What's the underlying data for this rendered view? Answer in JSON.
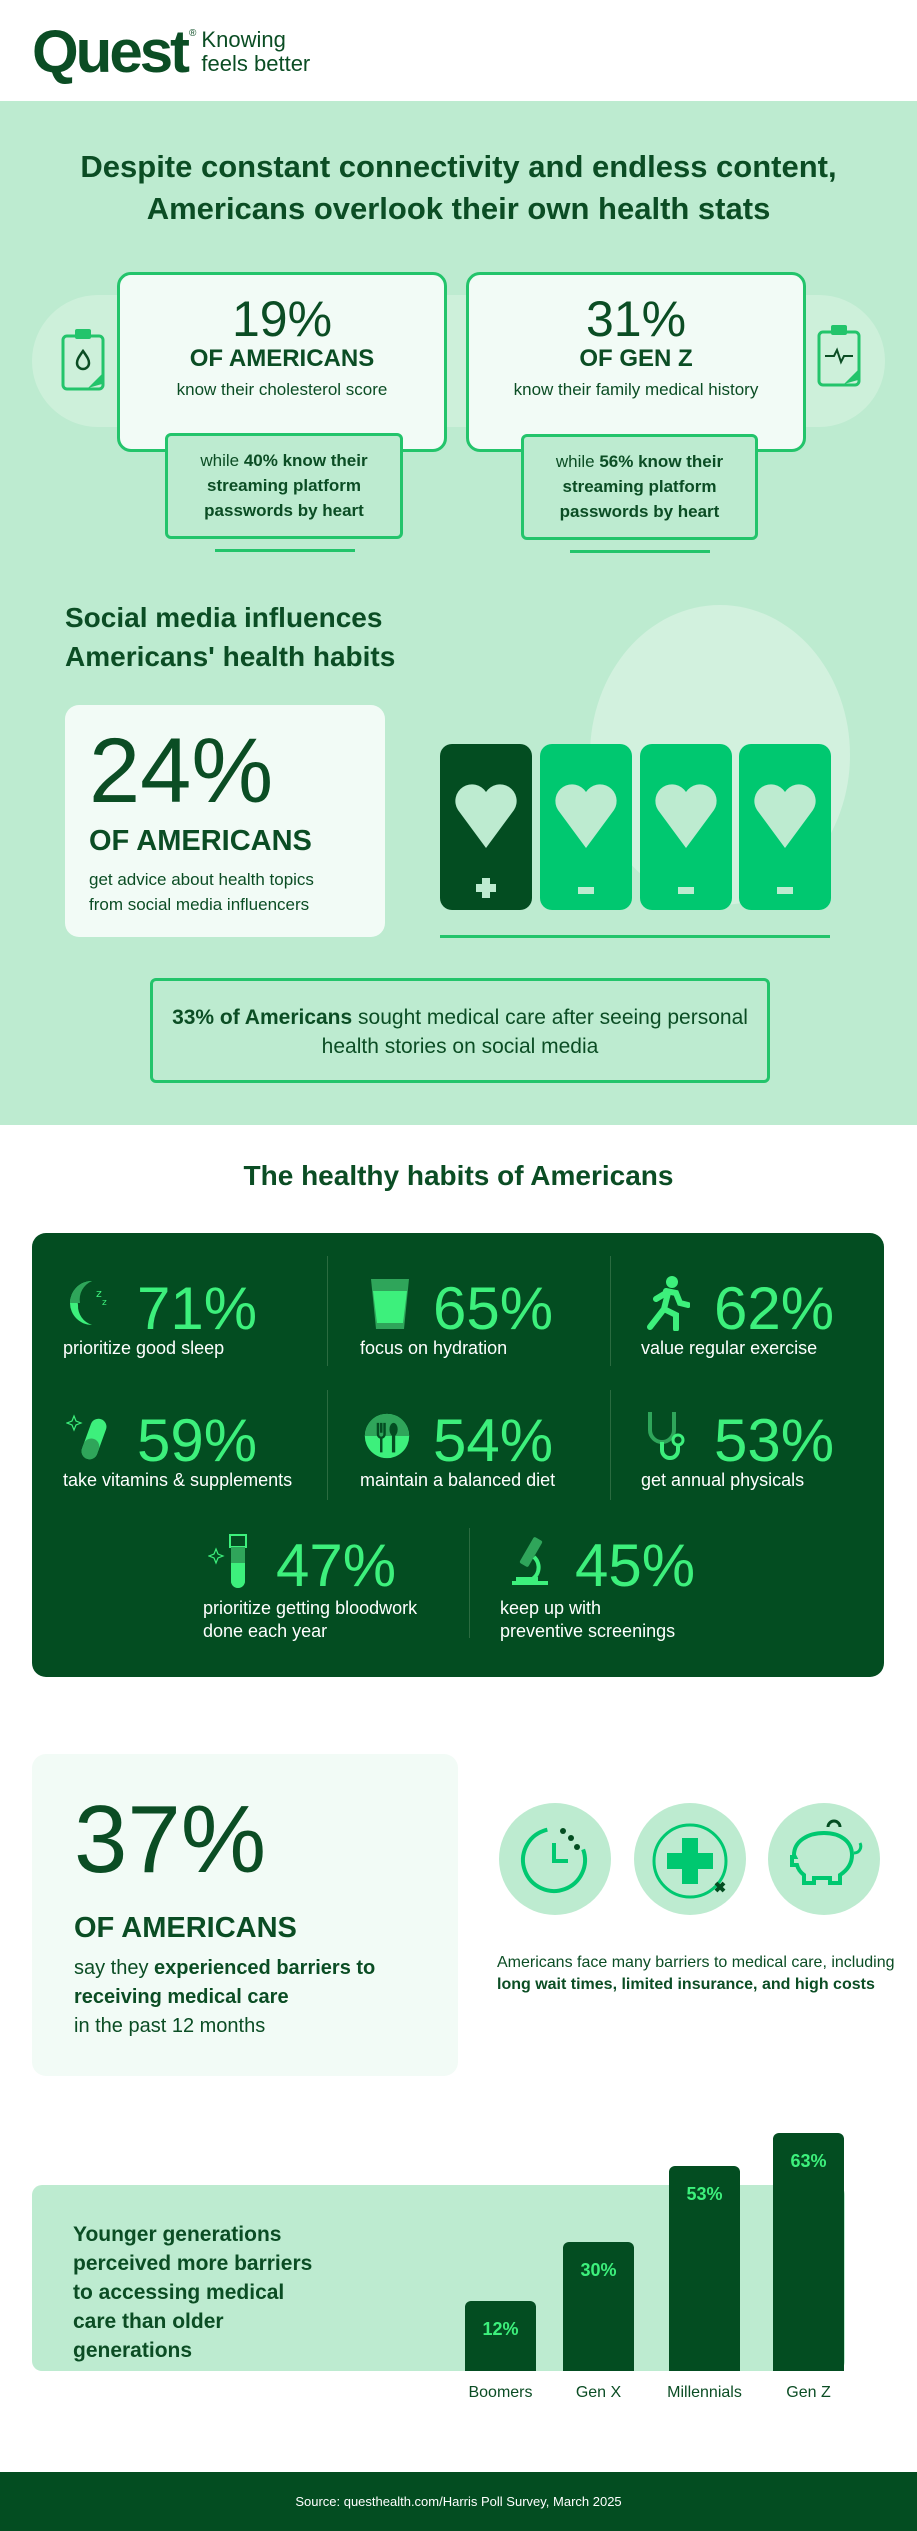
{
  "brand": {
    "name": "Quest",
    "reg": "®",
    "tagline_1": "Knowing",
    "tagline_2": "feels better"
  },
  "intro": {
    "title_1": "Despite constant connectivity and endless content,",
    "title_2": "Americans overlook their own health stats",
    "cards": [
      {
        "pct": "19%",
        "group": "OF AMERICANS",
        "desc": "know their cholesterol score",
        "sub_pre": "while ",
        "sub_bold": "40% know their streaming platform passwords by heart",
        "icon": "clipboard-drop-icon"
      },
      {
        "pct": "31%",
        "group": "OF GEN Z",
        "desc": "know their family medical history",
        "sub_pre": "while ",
        "sub_bold": "56% know their streaming platform passwords by heart",
        "icon": "clipboard-heartbeat-icon"
      }
    ]
  },
  "social": {
    "title_1": "Social media influences",
    "title_2": "Americans' health habits",
    "pct": "24%",
    "group": "OF AMERICANS",
    "desc": "get advice about health topics from social media influencers",
    "phones_highlighted": 1,
    "phones_total": 4,
    "note_bold": "33% of Americans",
    "note_rest": " sought medical care after seeing personal health stories on social media"
  },
  "habits": {
    "title": "The healthy habits of Americans",
    "items": [
      {
        "pct": "71%",
        "label": "prioritize good sleep",
        "icon": "moon-sleep-icon"
      },
      {
        "pct": "65%",
        "label": "focus on hydration",
        "icon": "water-glass-icon"
      },
      {
        "pct": "62%",
        "label": "value regular exercise",
        "icon": "running-person-icon"
      },
      {
        "pct": "59%",
        "label": "take vitamins & supplements",
        "icon": "pill-icon"
      },
      {
        "pct": "54%",
        "label": "maintain a balanced diet",
        "icon": "plate-utensils-icon"
      },
      {
        "pct": "53%",
        "label": "get annual physicals",
        "icon": "stethoscope-icon"
      },
      {
        "pct": "47%",
        "label_1": "prioritize getting bloodwork",
        "label_2": "done each year",
        "icon": "test-tube-icon"
      },
      {
        "pct": "45%",
        "label_1": "keep up with",
        "label_2": "preventive screenings",
        "icon": "microscope-icon"
      }
    ]
  },
  "barriers": {
    "pct": "37%",
    "group": "OF AMERICANS",
    "desc_pre": "say they ",
    "desc_bold": "experienced barriers to receiving medical care",
    "desc_post": "in the past 12 months",
    "side_pre": "Americans face many barriers to medical care, including ",
    "side_bold": "long wait times, limited insurance, and high costs",
    "icons": [
      "clock-icon",
      "medical-cross-x-icon",
      "piggy-bank-icon"
    ]
  },
  "chart_data": {
    "type": "bar",
    "title": "Younger generations perceived more barriers to accessing medical care than older generations",
    "categories": [
      "Boomers",
      "Gen X",
      "Millennials",
      "Gen Z"
    ],
    "values": [
      12,
      30,
      53,
      63
    ],
    "labels": [
      "12%",
      "30%",
      "53%",
      "63%"
    ],
    "xlabel": "",
    "ylabel": "",
    "ylim": [
      0,
      70
    ]
  },
  "footer": {
    "source": "Source: questhealth.com/Harris Poll Survey, March 2025"
  },
  "colors": {
    "dark": "#034d21",
    "bright": "#3df07c",
    "accent": "#00c870",
    "light": "#bdebd0"
  }
}
